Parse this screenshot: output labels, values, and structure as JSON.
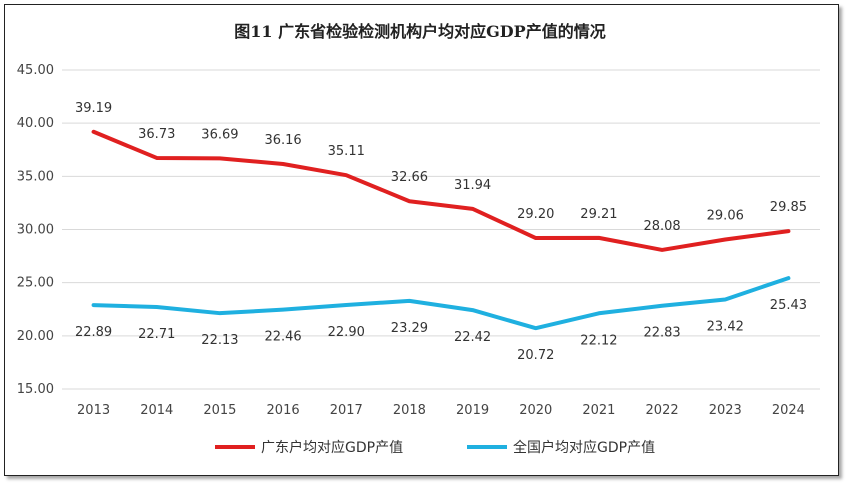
{
  "chart_data": {
    "type": "line",
    "title": "图11  广东省检验检测机构户均对应GDP产值的情况",
    "categories": [
      "2013",
      "2014",
      "2015",
      "2016",
      "2017",
      "2018",
      "2019",
      "2020",
      "2021",
      "2022",
      "2023",
      "2024"
    ],
    "y_ticks": [
      "45.00",
      "40.00",
      "35.00",
      "30.00",
      "25.00",
      "20.00",
      "15.00"
    ],
    "ylim": [
      15,
      45
    ],
    "legend_position": "bottom",
    "series": [
      {
        "name": "广东户均对应GDP产值",
        "color": "#e02020",
        "values": [
          39.19,
          36.73,
          36.69,
          36.16,
          35.11,
          32.66,
          31.94,
          29.2,
          29.21,
          28.08,
          29.06,
          29.85
        ],
        "labels": [
          "39.19",
          "36.73",
          "36.69",
          "36.16",
          "35.11",
          "32.66",
          "31.94",
          "29.20",
          "29.21",
          "28.08",
          "29.06",
          "29.85"
        ]
      },
      {
        "name": "全国户均对应GDP产值",
        "color": "#1fb0e0",
        "values": [
          22.89,
          22.71,
          22.13,
          22.46,
          22.9,
          23.29,
          22.42,
          20.72,
          22.12,
          22.83,
          23.42,
          25.43
        ],
        "labels": [
          "22.89",
          "22.71",
          "22.13",
          "22.46",
          "22.90",
          "23.29",
          "22.42",
          "20.72",
          "22.12",
          "22.83",
          "23.42",
          "25.43"
        ]
      }
    ]
  }
}
